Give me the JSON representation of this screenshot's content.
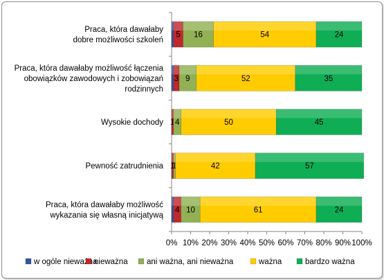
{
  "chart_data": {
    "type": "bar",
    "orientation": "horizontal",
    "stacked": "percent",
    "categories": [
      [
        "Praca, która dawałaby",
        "dobre możliwości  szkoleń"
      ],
      [
        "Praca, która dawałaby  możliwość łączenia",
        "obowiązków zawodowych i zobowiązań",
        "rodzinnych"
      ],
      [
        "Wysokie dochody"
      ],
      [
        "Pewność zatrudnienia"
      ],
      [
        "Praca, która dawałaby  możliwość",
        "wykazania się własną inicjatywą"
      ]
    ],
    "series": [
      {
        "name": "w ogóle nieważna",
        "color": "#2f55a4",
        "values": [
          1,
          1,
          0,
          0,
          1
        ]
      },
      {
        "name": "nieważna",
        "color": "#c0282c",
        "values": [
          5,
          3,
          1,
          1,
          4
        ]
      },
      {
        "name": "ani ważna,  ani nieważna",
        "color": "#92b155",
        "values": [
          16,
          9,
          4,
          1,
          10
        ]
      },
      {
        "name": "ważna",
        "color": "#ffcc00",
        "values": [
          54,
          52,
          50,
          42,
          61
        ]
      },
      {
        "name": "bardzo ważna",
        "color": "#0fae55",
        "values": [
          24,
          35,
          45,
          57,
          24
        ]
      }
    ],
    "data_labels": [
      [
        null,
        "5",
        "16",
        "54",
        "24"
      ],
      [
        null,
        "3",
        "9",
        "52",
        "35"
      ],
      [
        null,
        "1",
        "4",
        "50",
        "45"
      ],
      [
        null,
        "1",
        "1",
        "42",
        "57"
      ],
      [
        null,
        "4",
        "10",
        "61",
        "24"
      ]
    ],
    "x_ticks": [
      "0%",
      "10%",
      "20%",
      "30%",
      "40%",
      "50%",
      "60%",
      "70%",
      "80%",
      "90%",
      "100%"
    ],
    "xlim": [
      0,
      100
    ],
    "grid": false,
    "legend_position": "bottom"
  }
}
